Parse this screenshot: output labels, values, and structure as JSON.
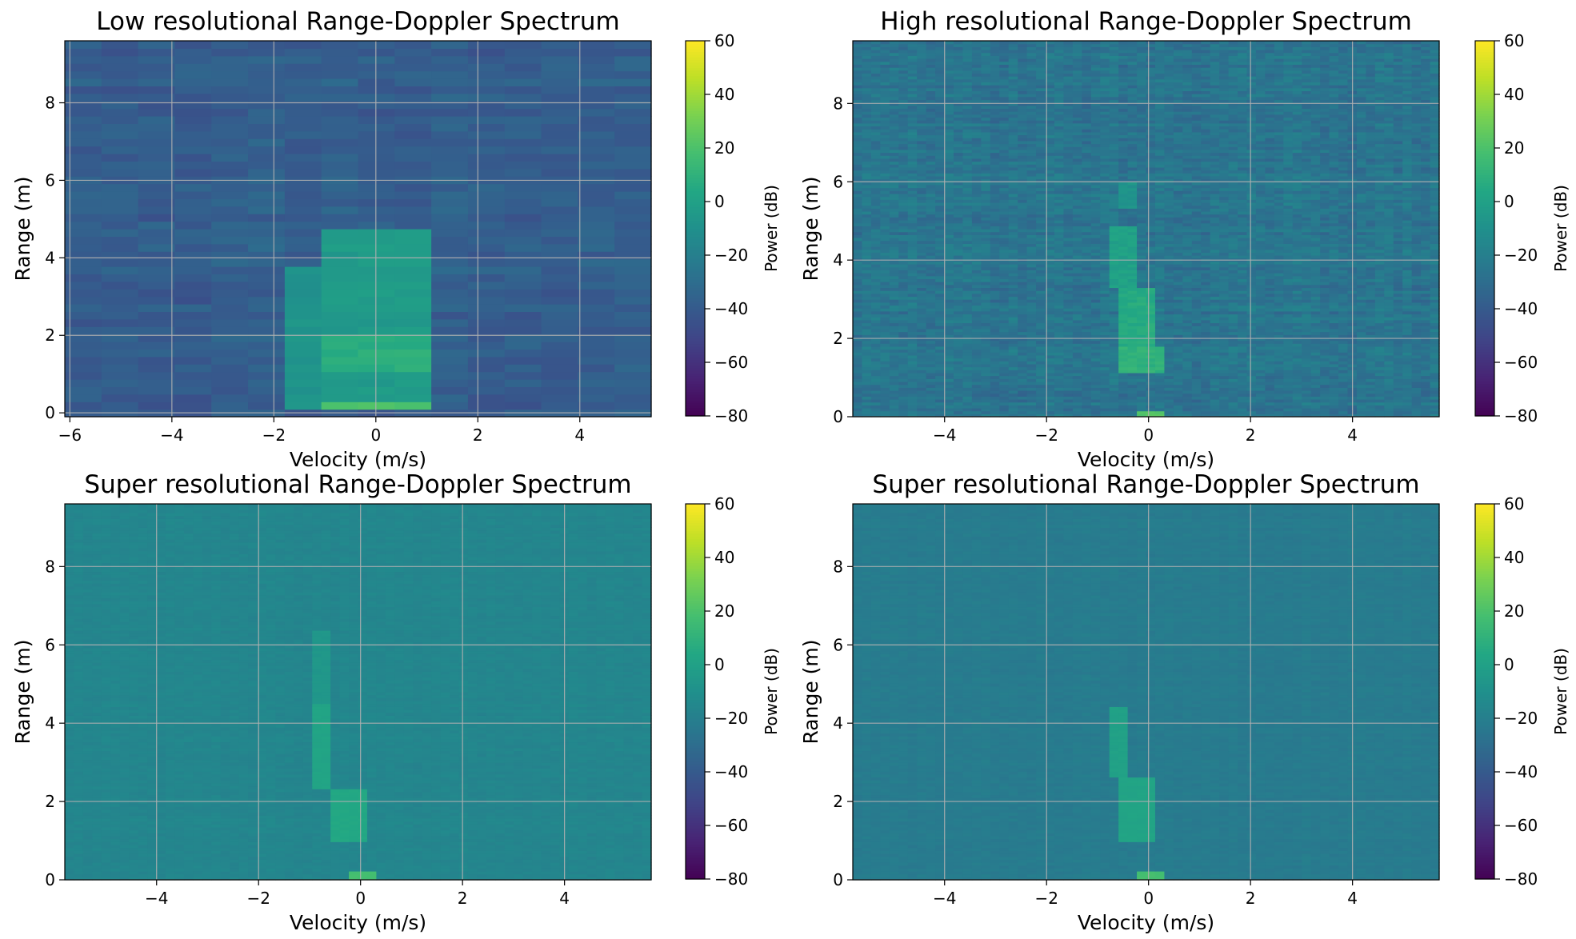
{
  "chart_data": [
    {
      "type": "heatmap",
      "title": "Low resolutional Range-Doppler Spectrum",
      "xlabel": "Velocity (m/s)",
      "ylabel": "Range (m)",
      "xlim": [
        -6.1,
        5.4
      ],
      "ylim": [
        -0.1,
        9.6
      ],
      "xticks": [
        -6,
        -4,
        -2,
        0,
        2,
        4
      ],
      "xtick_labels": [
        "−6",
        "−4",
        "−2",
        "0",
        "2",
        "4"
      ],
      "yticks": [
        0,
        2,
        4,
        6,
        8
      ],
      "ytick_labels": [
        "0",
        "2",
        "4",
        "6",
        "8"
      ],
      "grid": true,
      "colorbar": {
        "label": "Power (dB)",
        "range": [
          -80,
          60
        ],
        "ticks": [
          60,
          40,
          20,
          0,
          -20,
          -40,
          -60,
          -80
        ],
        "tick_labels": [
          "60",
          "40",
          "20",
          "0",
          "−20",
          "−40",
          "−60",
          "−80"
        ],
        "colormap": "viridis"
      },
      "background_db": -38,
      "noise_db": 6,
      "velocity_bins": 16,
      "range_bins": 50,
      "seed": 11,
      "targets": [
        {
          "v_min": -1.8,
          "v_max": 1.1,
          "r_min": 0.0,
          "r_max": 3.8,
          "db": -8
        },
        {
          "v_min": -1.1,
          "v_max": 1.1,
          "r_min": 0.0,
          "r_max": 4.7,
          "db": -4
        },
        {
          "v_min": -1.1,
          "v_max": 1.1,
          "r_min": 1.0,
          "r_max": 2.0,
          "db": 8
        },
        {
          "v_min": -1.1,
          "v_max": 1.1,
          "r_min": 0.0,
          "r_max": 0.25,
          "db": 22
        }
      ]
    },
    {
      "type": "heatmap",
      "title": "High resolutional Range-Doppler Spectrum",
      "xlabel": "Velocity (m/s)",
      "ylabel": "Range (m)",
      "xlim": [
        -5.8,
        5.7
      ],
      "ylim": [
        0,
        9.6
      ],
      "xticks": [
        -4,
        -2,
        0,
        2,
        4
      ],
      "xtick_labels": [
        "−4",
        "−2",
        "0",
        "2",
        "4"
      ],
      "yticks": [
        0,
        2,
        4,
        6,
        8
      ],
      "ytick_labels": [
        "0",
        "2",
        "4",
        "6",
        "8"
      ],
      "grid": true,
      "colorbar": {
        "label": "Power (dB)",
        "range": [
          -80,
          60
        ],
        "ticks": [
          60,
          40,
          20,
          0,
          -20,
          -40,
          -60,
          -80
        ],
        "tick_labels": [
          "60",
          "40",
          "20",
          "0",
          "−20",
          "−40",
          "−60",
          "−80"
        ],
        "colormap": "viridis"
      },
      "background_db": -26,
      "noise_db": 7,
      "velocity_bins": 64,
      "range_bins": 128,
      "seed": 29,
      "targets": [
        {
          "v_min": -0.6,
          "v_max": -0.3,
          "r_min": 5.3,
          "r_max": 6.0,
          "db": -8
        },
        {
          "v_min": -0.75,
          "v_max": -0.25,
          "r_min": 3.3,
          "r_max": 4.9,
          "db": 0
        },
        {
          "v_min": -0.6,
          "v_max": 0.2,
          "r_min": 1.3,
          "r_max": 3.3,
          "db": 6
        },
        {
          "v_min": -0.5,
          "v_max": 0.3,
          "r_min": 1.1,
          "r_max": 1.8,
          "db": 10
        },
        {
          "v_min": -0.2,
          "v_max": 0.3,
          "r_min": 0.0,
          "r_max": 0.15,
          "db": 22
        }
      ]
    },
    {
      "type": "heatmap",
      "title": "Super resolutional Range-Doppler Spectrum",
      "xlabel": "Velocity (m/s)",
      "ylabel": "Range (m)",
      "xlim": [
        -5.8,
        5.7
      ],
      "ylim": [
        0,
        9.6
      ],
      "xticks": [
        -4,
        -2,
        0,
        2,
        4
      ],
      "xtick_labels": [
        "−4",
        "−2",
        "0",
        "2",
        "4"
      ],
      "yticks": [
        0,
        2,
        4,
        6,
        8
      ],
      "ytick_labels": [
        "0",
        "2",
        "4",
        "6",
        "8"
      ],
      "grid": true,
      "colorbar": {
        "label": "Power (dB)",
        "range": [
          -80,
          60
        ],
        "ticks": [
          60,
          40,
          20,
          0,
          -20,
          -40,
          -60,
          -80
        ],
        "tick_labels": [
          "60",
          "40",
          "20",
          "0",
          "−20",
          "−40",
          "−60",
          "−80"
        ],
        "colormap": "viridis"
      },
      "background_db": -16,
      "noise_db": 2,
      "velocity_bins": 64,
      "range_bins": 128,
      "seed": 47,
      "targets": [
        {
          "v_min": -0.9,
          "v_max": -0.6,
          "r_min": 4.5,
          "r_max": 6.4,
          "db": -6
        },
        {
          "v_min": -1.0,
          "v_max": -0.55,
          "r_min": 2.3,
          "r_max": 4.5,
          "db": 2
        },
        {
          "v_min": -0.6,
          "v_max": 0.2,
          "r_min": 1.0,
          "r_max": 2.3,
          "db": 4
        },
        {
          "v_min": -0.25,
          "v_max": 0.25,
          "r_min": 0.0,
          "r_max": 0.25,
          "db": 18
        }
      ]
    },
    {
      "type": "heatmap",
      "title": "Super resolutional Range-Doppler Spectrum",
      "xlabel": "Velocity (m/s)",
      "ylabel": "Range (m)",
      "xlim": [
        -5.8,
        5.7
      ],
      "ylim": [
        0,
        9.6
      ],
      "xticks": [
        -4,
        -2,
        0,
        2,
        4
      ],
      "xtick_labels": [
        "−4",
        "−2",
        "0",
        "2",
        "4"
      ],
      "yticks": [
        0,
        2,
        4,
        6,
        8
      ],
      "ytick_labels": [
        "0",
        "2",
        "4",
        "6",
        "8"
      ],
      "grid": true,
      "colorbar": {
        "label": "Power (dB)",
        "range": [
          -80,
          60
        ],
        "ticks": [
          60,
          40,
          20,
          0,
          -20,
          -40,
          -60,
          -80
        ],
        "tick_labels": [
          "60",
          "40",
          "20",
          "0",
          "−20",
          "−40",
          "−60",
          "−80"
        ],
        "colormap": "viridis"
      },
      "background_db": -22,
      "noise_db": 2,
      "velocity_bins": 64,
      "range_bins": 128,
      "seed": 83,
      "targets": [
        {
          "v_min": -0.75,
          "v_max": -0.35,
          "r_min": 2.6,
          "r_max": 4.4,
          "db": 0
        },
        {
          "v_min": -0.6,
          "v_max": 0.2,
          "r_min": 1.0,
          "r_max": 2.6,
          "db": 2
        },
        {
          "v_min": -0.2,
          "v_max": 0.25,
          "r_min": 0.0,
          "r_max": 0.25,
          "db": 18
        }
      ]
    }
  ]
}
